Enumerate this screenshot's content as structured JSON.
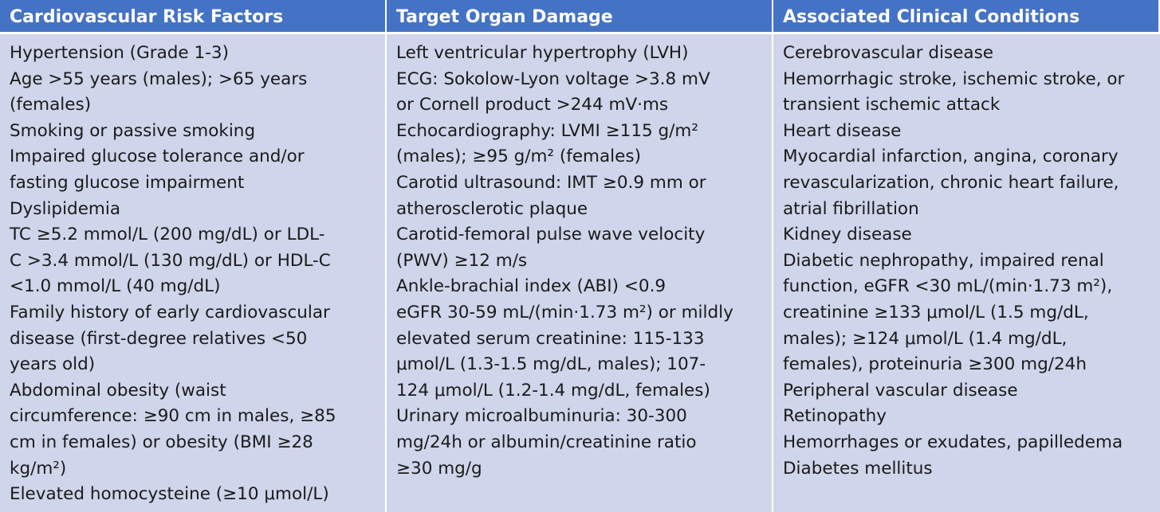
{
  "headers": [
    "Cardiovascular Risk Factors",
    "Target Organ Damage",
    "Associated Clinical Conditions"
  ],
  "columns": [
    [
      "Hypertension (Grade 1-3)",
      "Age >55 years (males); >65 years",
      "(females)",
      "Smoking or passive smoking",
      "Impaired glucose tolerance and/or",
      "fasting glucose impairment",
      "Dyslipidemia",
      "TC ≥5.2 mmol/L (200 mg/dL) or LDL-",
      "C >3.4 mmol/L (130 mg/dL) or HDL-C",
      "<1.0 mmol/L (40 mg/dL)",
      "Family history of early cardiovascular",
      "disease (first-degree relatives <50",
      "years old)",
      "Abdominal obesity (waist",
      "circumference: ≥90 cm in males, ≥85",
      "cm in females) or obesity (BMI ≥28",
      "kg/m²)",
      "Elevated homocysteine (≥10 μmol/L)"
    ],
    [
      "Left ventricular hypertrophy (LVH)",
      "ECG: Sokolow-Lyon voltage >3.8 mV",
      "or Cornell product >244 mV·ms",
      "Echocardiography: LVMI ≥115 g/m²",
      "(males); ≥95 g/m² (females)",
      "Carotid ultrasound: IMT ≥0.9 mm or",
      "atherosclerotic plaque",
      "Carotid-femoral pulse wave velocity",
      "(PWV) ≥12 m/s",
      "Ankle-brachial index (ABI) <0.9",
      "eGFR 30-59 mL/(min·1.73 m²) or mildly",
      "elevated serum creatinine: 115-133",
      "μmol/L (1.3-1.5 mg/dL, males); 107-",
      "124 μmol/L (1.2-1.4 mg/dL, females)",
      "Urinary microalbuminuria: 30-300",
      "mg/24h or albumin/creatinine ratio",
      "≥30 mg/g"
    ],
    [
      "Cerebrovascular disease",
      "Hemorrhagic stroke, ischemic stroke, or",
      "transient ischemic attack",
      "Heart disease",
      "Myocardial infarction, angina, coronary",
      "revascularization, chronic heart failure,",
      "atrial fibrillation",
      "Kidney disease",
      "Diabetic nephropathy, impaired renal",
      "function, eGFR <30 mL/(min·1.73 m²),",
      "creatinine ≥133 μmol/L (1.5 mg/dL,",
      "males); ≥124 μmol/L (1.4 mg/dL,",
      "females), proteinuria ≥300 mg/24h",
      "Peripheral vascular disease",
      "Retinopathy",
      "Hemorrhages or exudates, papilledema",
      "Diabetes mellitus"
    ]
  ],
  "colors": {
    "header_bg": "#4472C4",
    "header_text": "#FFFFFF",
    "body_bg": "#CFD5EA",
    "body_text": "#1A1A1A"
  }
}
